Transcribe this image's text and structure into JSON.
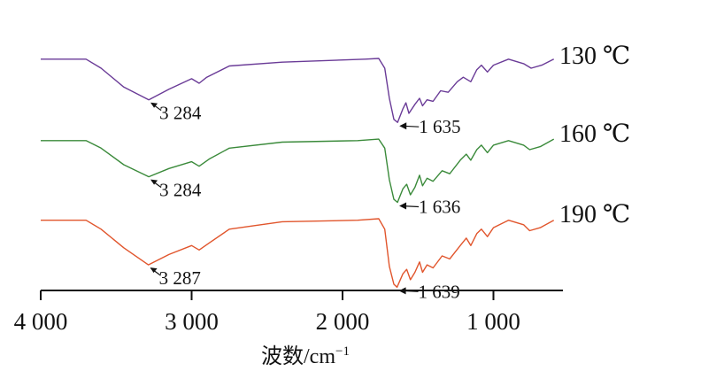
{
  "chart_data": {
    "type": "line",
    "x_unit_note": "wavenumber (cm-1), axis reversed (high to low)",
    "xlim": [
      4000,
      600
    ],
    "x_reversed": true,
    "y_ticks_shown": false,
    "grid": false,
    "stacked_offsets": true,
    "xlabel": "波数/cm",
    "xlabel_sup": "−1",
    "x_ticks": [
      {
        "value": 4000,
        "label": "4 000"
      },
      {
        "value": 3000,
        "label": "3 000"
      },
      {
        "value": 2000,
        "label": "2 000"
      },
      {
        "value": 1000,
        "label": "1 000"
      }
    ],
    "series": [
      {
        "name": "130 ℃",
        "color": "#6a3b97",
        "points": [
          [
            4000,
            0.92
          ],
          [
            3700,
            0.92
          ],
          [
            3600,
            0.8
          ],
          [
            3450,
            0.55
          ],
          [
            3284,
            0.38
          ],
          [
            3150,
            0.52
          ],
          [
            3000,
            0.66
          ],
          [
            2950,
            0.6
          ],
          [
            2900,
            0.68
          ],
          [
            2750,
            0.83
          ],
          [
            2400,
            0.88
          ],
          [
            1850,
            0.92
          ],
          [
            1760,
            0.93
          ],
          [
            1720,
            0.8
          ],
          [
            1690,
            0.4
          ],
          [
            1660,
            0.12
          ],
          [
            1635,
            0.08
          ],
          [
            1600,
            0.26
          ],
          [
            1580,
            0.34
          ],
          [
            1560,
            0.2
          ],
          [
            1520,
            0.32
          ],
          [
            1490,
            0.4
          ],
          [
            1470,
            0.3
          ],
          [
            1440,
            0.38
          ],
          [
            1400,
            0.36
          ],
          [
            1350,
            0.5
          ],
          [
            1300,
            0.48
          ],
          [
            1240,
            0.62
          ],
          [
            1200,
            0.68
          ],
          [
            1150,
            0.62
          ],
          [
            1110,
            0.78
          ],
          [
            1080,
            0.84
          ],
          [
            1040,
            0.75
          ],
          [
            1000,
            0.84
          ],
          [
            900,
            0.92
          ],
          [
            800,
            0.86
          ],
          [
            750,
            0.8
          ],
          [
            680,
            0.84
          ],
          [
            600,
            0.92
          ]
        ]
      },
      {
        "name": "160 ℃",
        "color": "#3a8a3a",
        "points": [
          [
            4000,
            0.92
          ],
          [
            3700,
            0.92
          ],
          [
            3600,
            0.82
          ],
          [
            3450,
            0.6
          ],
          [
            3284,
            0.44
          ],
          [
            3150,
            0.55
          ],
          [
            3000,
            0.64
          ],
          [
            2950,
            0.58
          ],
          [
            2880,
            0.68
          ],
          [
            2750,
            0.82
          ],
          [
            2400,
            0.9
          ],
          [
            1900,
            0.92
          ],
          [
            1760,
            0.94
          ],
          [
            1720,
            0.82
          ],
          [
            1690,
            0.4
          ],
          [
            1660,
            0.14
          ],
          [
            1636,
            0.1
          ],
          [
            1600,
            0.28
          ],
          [
            1575,
            0.34
          ],
          [
            1550,
            0.2
          ],
          [
            1520,
            0.3
          ],
          [
            1490,
            0.46
          ],
          [
            1470,
            0.32
          ],
          [
            1440,
            0.42
          ],
          [
            1400,
            0.38
          ],
          [
            1340,
            0.52
          ],
          [
            1290,
            0.48
          ],
          [
            1220,
            0.66
          ],
          [
            1180,
            0.74
          ],
          [
            1150,
            0.66
          ],
          [
            1110,
            0.8
          ],
          [
            1080,
            0.86
          ],
          [
            1040,
            0.76
          ],
          [
            1000,
            0.86
          ],
          [
            900,
            0.92
          ],
          [
            800,
            0.86
          ],
          [
            760,
            0.8
          ],
          [
            690,
            0.84
          ],
          [
            600,
            0.94
          ]
        ]
      },
      {
        "name": "190 ℃",
        "color": "#e1552c",
        "points": [
          [
            4000,
            0.92
          ],
          [
            3700,
            0.92
          ],
          [
            3600,
            0.8
          ],
          [
            3450,
            0.55
          ],
          [
            3287,
            0.32
          ],
          [
            3150,
            0.46
          ],
          [
            3000,
            0.58
          ],
          [
            2950,
            0.52
          ],
          [
            2880,
            0.62
          ],
          [
            2750,
            0.8
          ],
          [
            2400,
            0.9
          ],
          [
            1900,
            0.92
          ],
          [
            1760,
            0.94
          ],
          [
            1720,
            0.8
          ],
          [
            1690,
            0.3
          ],
          [
            1660,
            0.06
          ],
          [
            1639,
            0.02
          ],
          [
            1600,
            0.2
          ],
          [
            1575,
            0.26
          ],
          [
            1550,
            0.12
          ],
          [
            1520,
            0.22
          ],
          [
            1490,
            0.36
          ],
          [
            1470,
            0.22
          ],
          [
            1440,
            0.32
          ],
          [
            1400,
            0.28
          ],
          [
            1340,
            0.44
          ],
          [
            1290,
            0.4
          ],
          [
            1220,
            0.58
          ],
          [
            1180,
            0.68
          ],
          [
            1150,
            0.58
          ],
          [
            1110,
            0.74
          ],
          [
            1080,
            0.8
          ],
          [
            1040,
            0.7
          ],
          [
            1000,
            0.82
          ],
          [
            900,
            0.92
          ],
          [
            800,
            0.86
          ],
          [
            760,
            0.78
          ],
          [
            690,
            0.82
          ],
          [
            600,
            0.92
          ]
        ]
      }
    ],
    "annotations": [
      {
        "series": 0,
        "x": 3284,
        "label": "3 284"
      },
      {
        "series": 0,
        "x": 1635,
        "label": "1 635"
      },
      {
        "series": 1,
        "x": 3284,
        "label": "3 284"
      },
      {
        "series": 1,
        "x": 1636,
        "label": "1 636"
      },
      {
        "series": 2,
        "x": 3287,
        "label": "3 287"
      },
      {
        "series": 2,
        "x": 1639,
        "label": "1 639"
      }
    ]
  }
}
